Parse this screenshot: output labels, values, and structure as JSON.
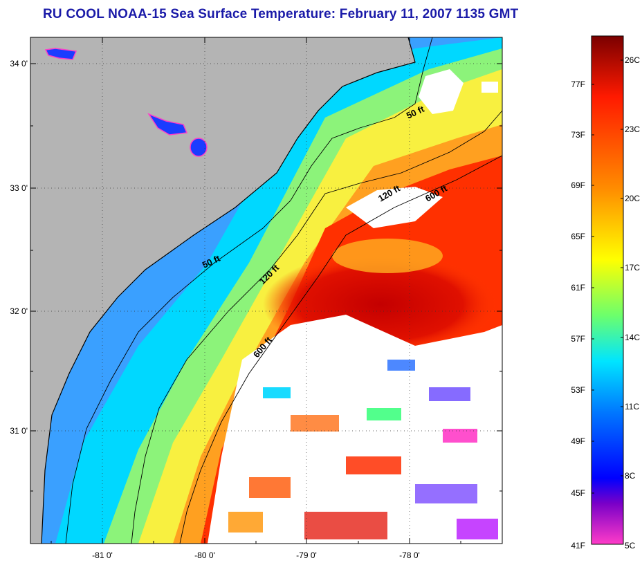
{
  "title": "RU COOL  NOAA-15  Sea Surface Temperature:  February 11, 2007 1135 GMT",
  "map": {
    "type": "sea-surface-temperature",
    "lat_labels": [
      "34 0'",
      "33 0'",
      "32 0'",
      "31 0'"
    ],
    "lon_labels": [
      "-81 0'",
      "-80 0'",
      "-79 0'",
      "-78 0'"
    ],
    "grid": "dotted",
    "colors": {
      "land": "#b4b4b4",
      "cloud": "#ffffff",
      "coast": "#000000"
    }
  },
  "contours": [
    "50 ft",
    "50 ft",
    "120 ft",
    "120 ft",
    "600 ft",
    "600 ft"
  ],
  "colorbar": {
    "fahrenheit": [
      "77F",
      "73F",
      "69F",
      "65F",
      "61F",
      "57F",
      "53F",
      "49F",
      "45F",
      "41F"
    ],
    "celsius": [
      "26C",
      "23C",
      "20C",
      "17C",
      "14C",
      "11C",
      "8C",
      "5C"
    ],
    "stops": [
      "#7a0000",
      "#ff1a00",
      "#ff8c00",
      "#ffff00",
      "#6cff6c",
      "#00e5ff",
      "#0078ff",
      "#0000ff",
      "#7a00c8",
      "#ff3cc8"
    ]
  }
}
